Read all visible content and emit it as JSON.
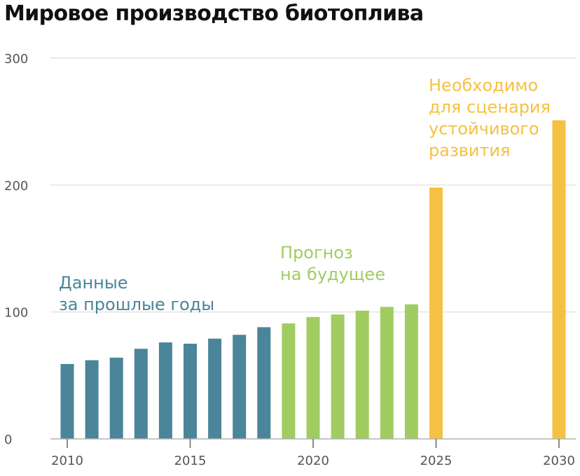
{
  "chart_data": {
    "type": "bar",
    "title": "Мировое производство биотоплива",
    "xlabel": "",
    "ylabel": "",
    "ylim": [
      0,
      300
    ],
    "y_ticks": [
      "0",
      "100",
      "200",
      "300"
    ],
    "x_ticks": [
      "2010",
      "2015",
      "2020",
      "2025",
      "2030"
    ],
    "x_range": [
      2010,
      2030
    ],
    "grid": "horizontal",
    "legend": "none",
    "series": [
      {
        "key": "historical",
        "color": "#4a8599",
        "points": [
          {
            "x": 2010,
            "y": 59
          },
          {
            "x": 2011,
            "y": 62
          },
          {
            "x": 2012,
            "y": 64
          },
          {
            "x": 2013,
            "y": 71
          },
          {
            "x": 2014,
            "y": 76
          },
          {
            "x": 2015,
            "y": 75
          },
          {
            "x": 2016,
            "y": 79
          },
          {
            "x": 2017,
            "y": 82
          },
          {
            "x": 2018,
            "y": 88
          }
        ]
      },
      {
        "key": "forecast",
        "color": "#a1cc62",
        "points": [
          {
            "x": 2019,
            "y": 91
          },
          {
            "x": 2020,
            "y": 96
          },
          {
            "x": 2021,
            "y": 98
          },
          {
            "x": 2022,
            "y": 101
          },
          {
            "x": 2023,
            "y": 104
          },
          {
            "x": 2024,
            "y": 106
          }
        ]
      },
      {
        "key": "sustainable",
        "color": "#f5c142",
        "points": [
          {
            "x": 2025,
            "y": 198
          },
          {
            "x": 2030,
            "y": 251
          }
        ]
      }
    ],
    "annotations": [
      {
        "key": "historical",
        "color": "#4a8599",
        "lines": [
          "Данные",
          "за прошлые годы"
        ]
      },
      {
        "key": "forecast",
        "color": "#a1cc62",
        "lines": [
          "Прогноз",
          "на будущее"
        ]
      },
      {
        "key": "sustainable",
        "color": "#f5c142",
        "lines": [
          "Необходимо",
          "для сценария",
          "устойчивого",
          "развития"
        ]
      }
    ]
  }
}
